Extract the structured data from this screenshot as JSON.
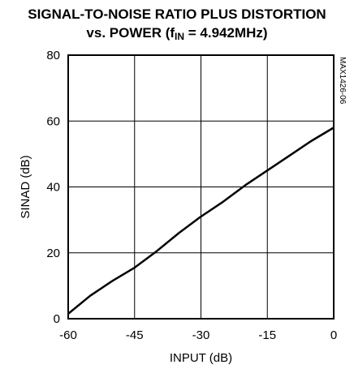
{
  "title": {
    "line1": "SIGNAL-TO-NOISE RATIO PLUS DISTORTION",
    "line2_prefix": "vs. POWER (f",
    "line2_sub": "IN",
    "line2_suffix": " = 4.942MHz)"
  },
  "figure_code": "MAX1426-06",
  "chart_data": {
    "type": "line",
    "xlabel": "INPUT (dB)",
    "ylabel": "SINAD (dB)",
    "xlim": [
      -60,
      0
    ],
    "ylim": [
      0,
      80
    ],
    "xticks": [
      -60,
      -45,
      -30,
      -15,
      0
    ],
    "yticks": [
      0,
      20,
      40,
      60,
      80
    ],
    "grid": true,
    "series": [
      {
        "x": [
          -60,
          -55,
          -50,
          -45,
          -40,
          -35,
          -30,
          -25,
          -20,
          -15,
          -10,
          -5,
          0
        ],
        "y": [
          1.5,
          7,
          11.5,
          15.5,
          20.5,
          26,
          31,
          35.5,
          40.5,
          45,
          49.5,
          54,
          58
        ]
      }
    ]
  },
  "colors": {
    "line": "#000000",
    "grid": "#000000",
    "background": "#ffffff"
  }
}
